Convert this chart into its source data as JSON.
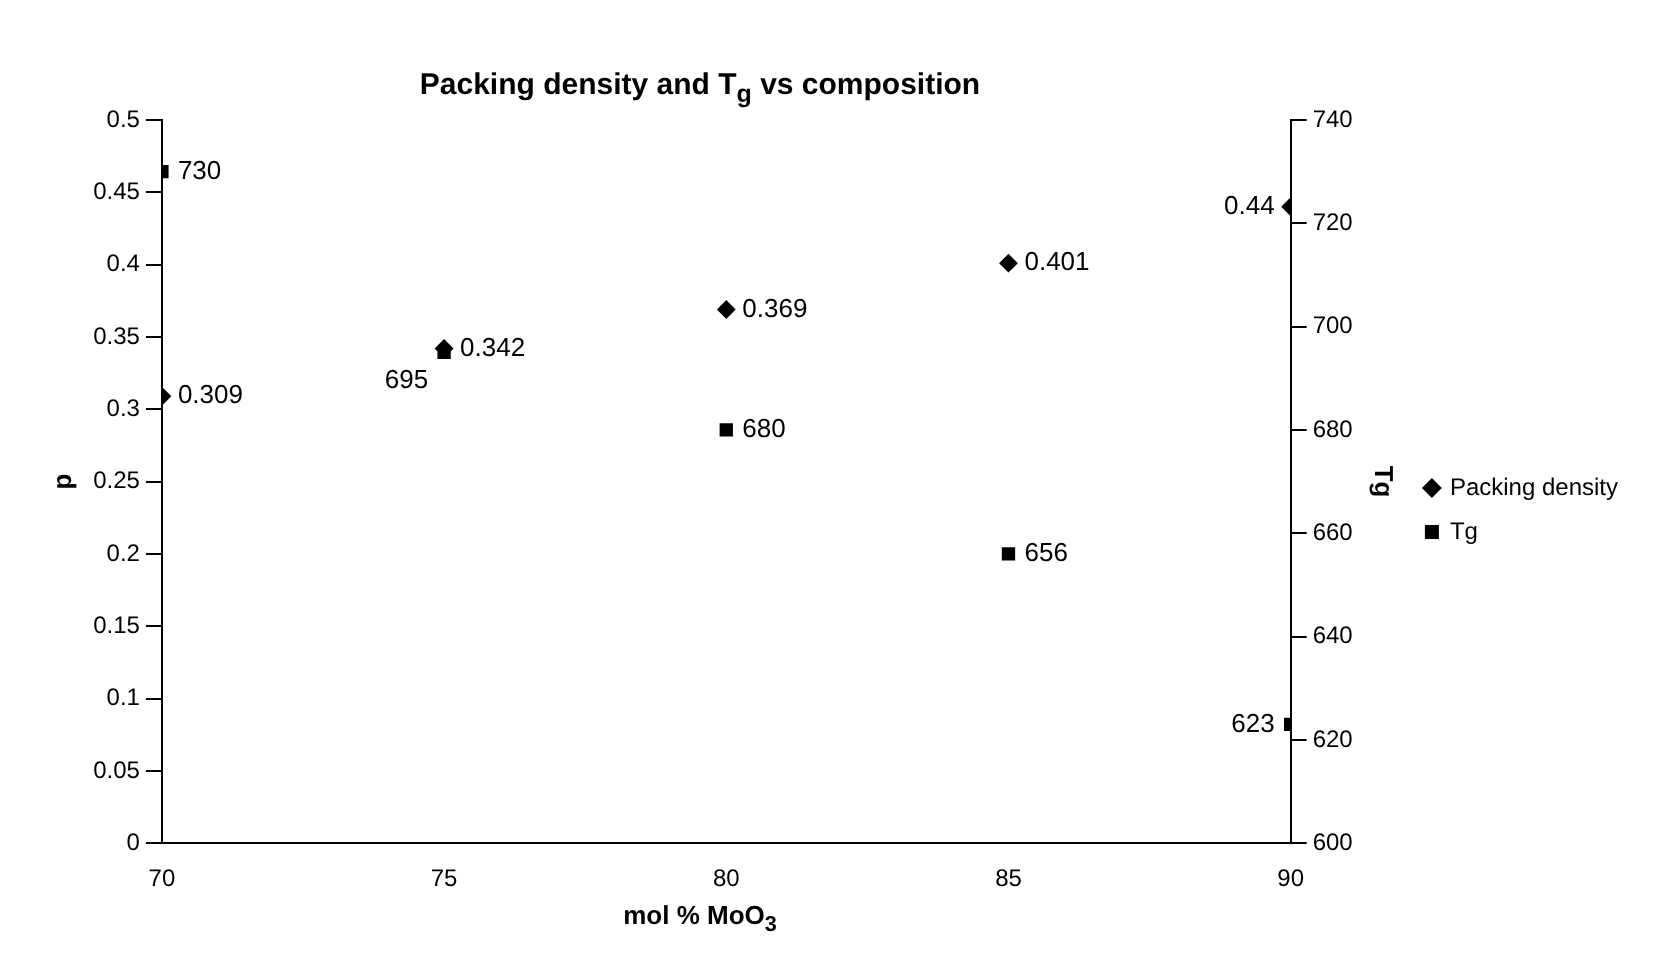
{
  "chart_data": {
    "type": "scatter",
    "title": "Packing density and T$_{g}$ vs composition",
    "xlabel": "mol % MoO$_{3}$",
    "ylabel": "p",
    "y2label": "Tg",
    "x": [
      70,
      75,
      80,
      85,
      90
    ],
    "series": [
      {
        "name": "Packing density",
        "color": "#000000",
        "marker": "diamond",
        "values": [
          0.309,
          0.342,
          0.369,
          0.401,
          0.44
        ]
      },
      {
        "name": "Tg",
        "color": "#000000",
        "marker": "square",
        "axis": "y2",
        "values": [
          730,
          695,
          680,
          656,
          623
        ]
      }
    ],
    "xlim": [
      70,
      90
    ],
    "xticks": [
      70,
      75,
      80,
      85,
      90
    ],
    "ylim": [
      0,
      0.5
    ],
    "yticks": [
      0,
      0.05,
      0.1,
      0.15,
      0.2,
      0.25,
      0.3,
      0.35,
      0.4,
      0.45,
      0.5
    ],
    "y2lim": [
      600,
      740
    ],
    "y2ticks": [
      600,
      620,
      640,
      660,
      680,
      700,
      720,
      740
    ],
    "data_labels": true,
    "legend": "right",
    "grid": false
  }
}
